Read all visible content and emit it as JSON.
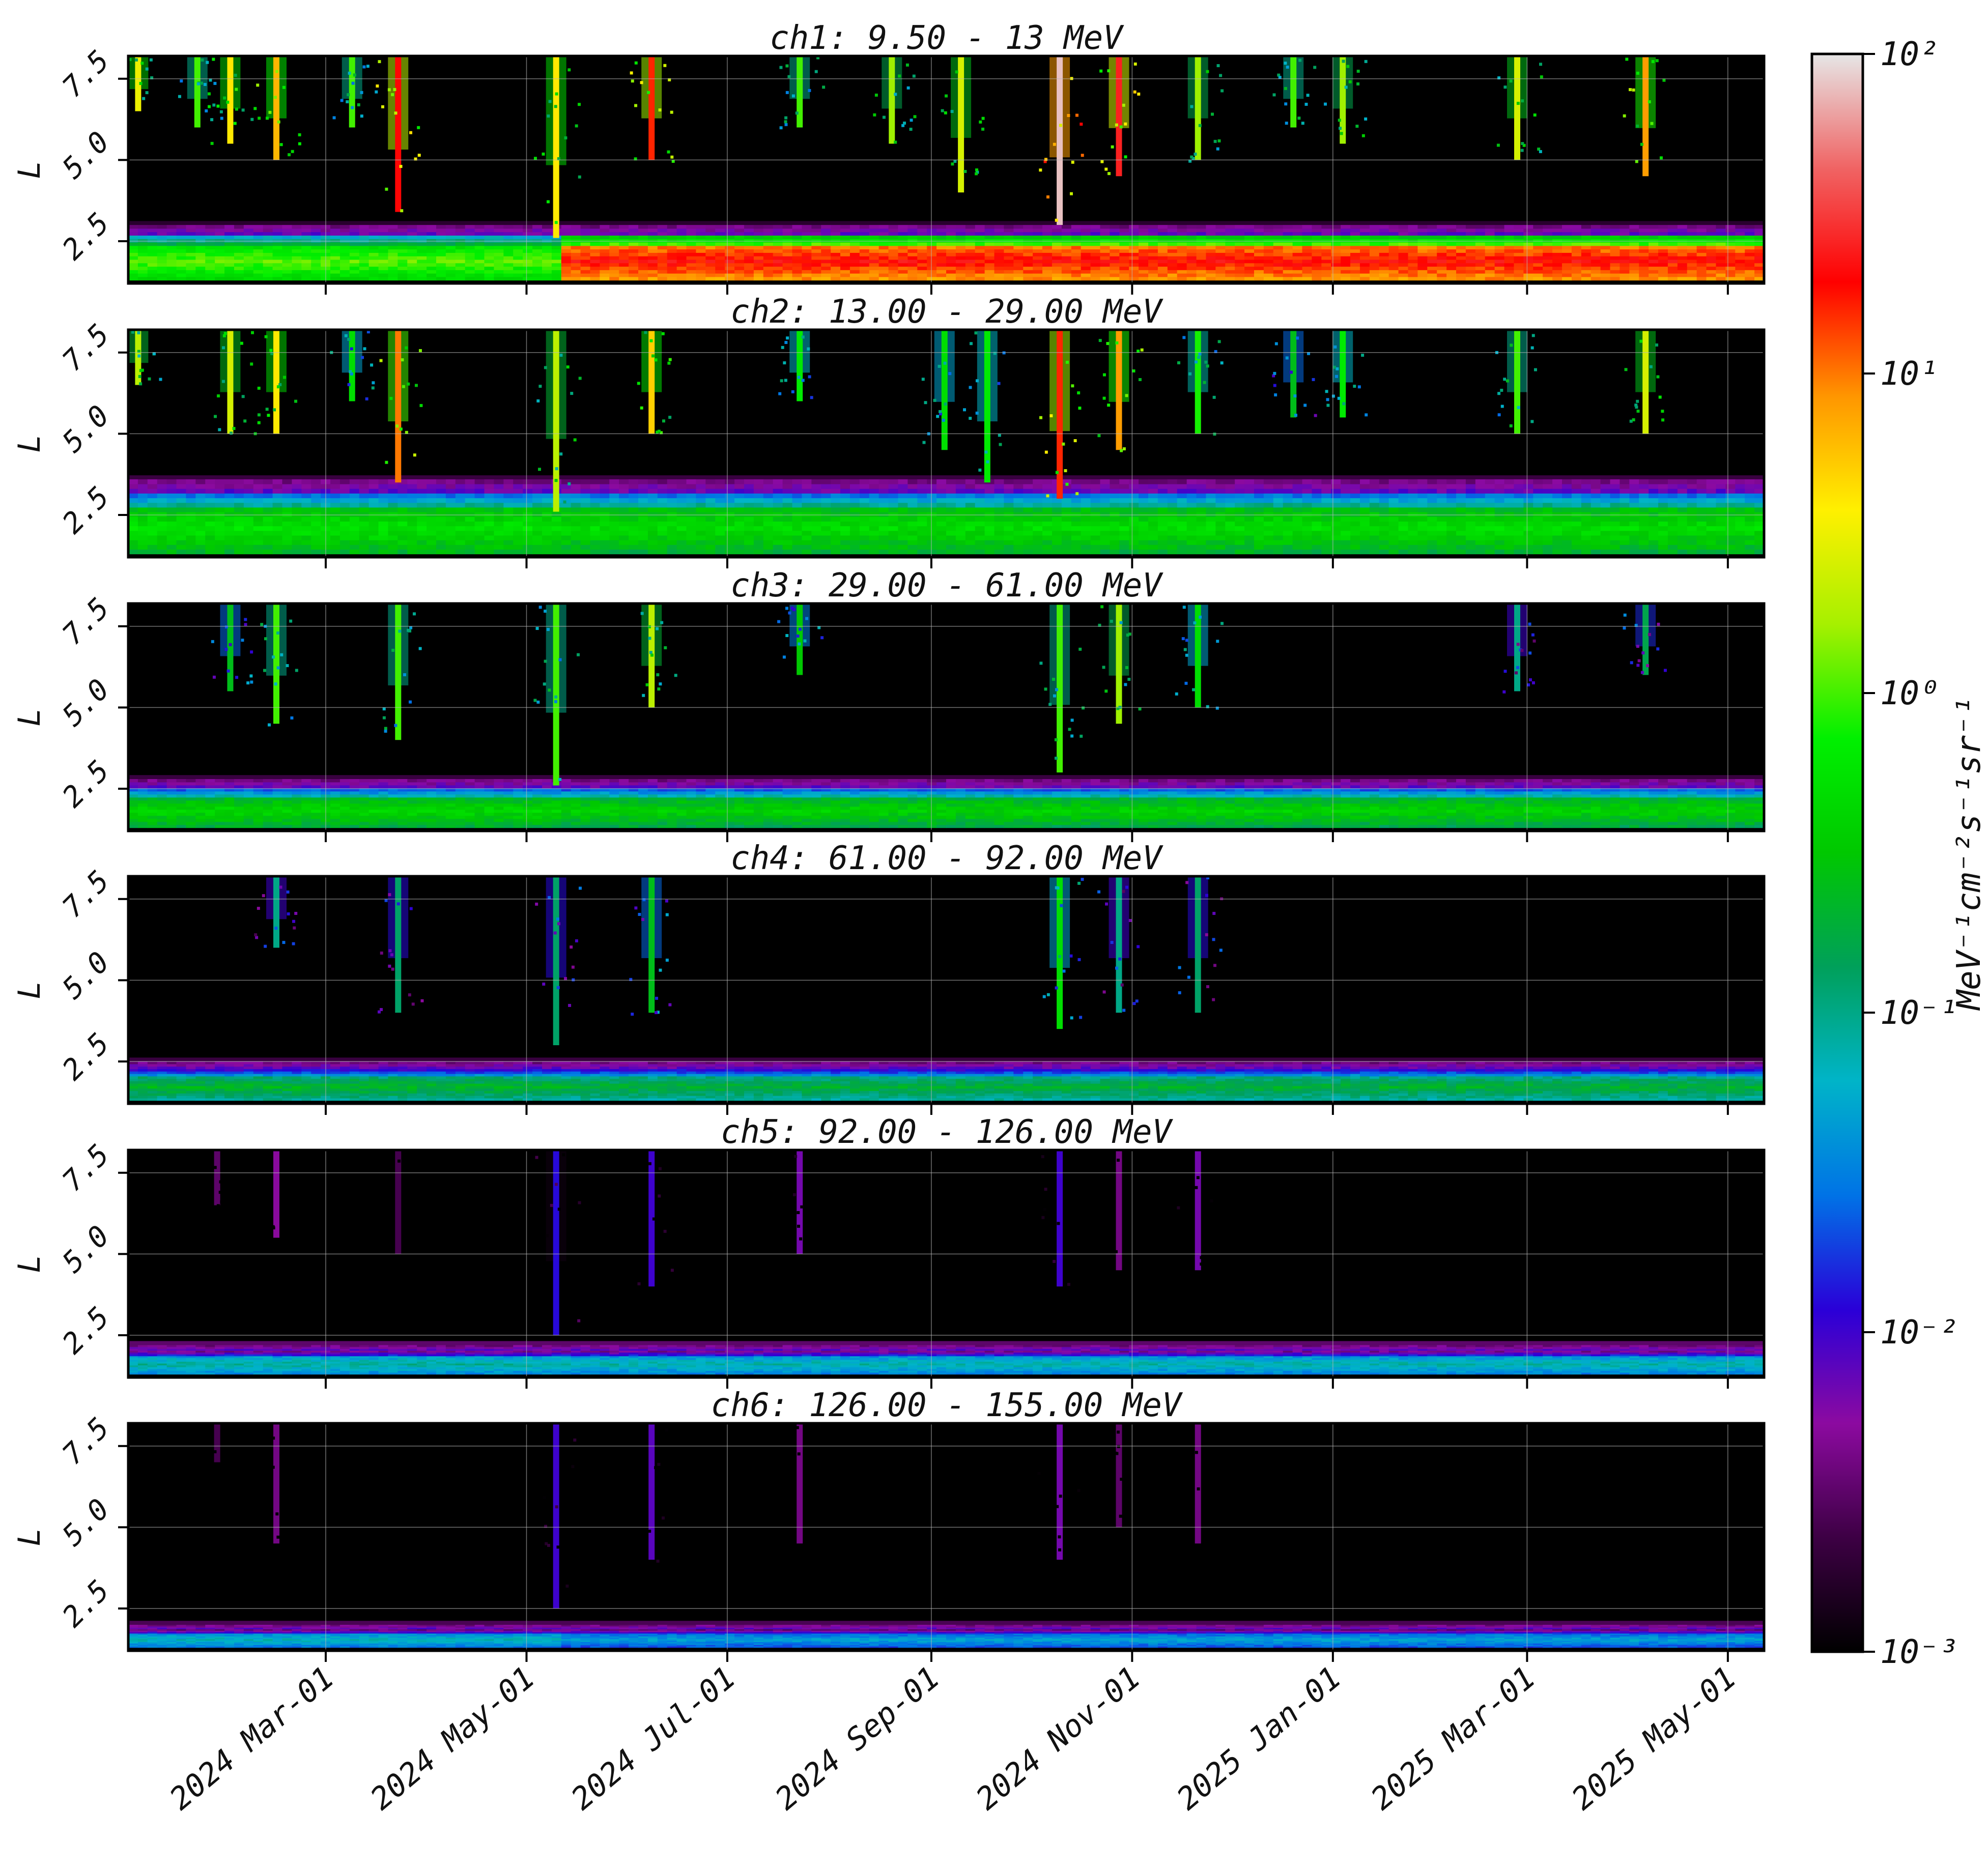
{
  "chart_data": {
    "type": "heatmap",
    "x_axis": {
      "tick_labels": [
        "2024 Mar-01",
        "2024 May-01",
        "2024 Jul-01",
        "2024 Sep-01",
        "2024 Nov-01",
        "2025 Jan-01",
        "2025 Mar-01",
        "2025 May-01"
      ],
      "tick_dates": [
        "2024-03-01",
        "2024-05-01",
        "2024-07-01",
        "2024-09-01",
        "2024-11-01",
        "2025-01-01",
        "2025-03-01",
        "2025-05-01"
      ],
      "range": [
        "2024-01-01",
        "2025-05-12"
      ],
      "grid": true
    },
    "y_axis": {
      "label": "L",
      "tick_labels": [
        "2.5",
        "5.0",
        "7.5"
      ],
      "ticks": [
        2.5,
        5.0,
        7.5
      ],
      "range": [
        1.2,
        8.2
      ],
      "grid": true
    },
    "colorbar": {
      "label": "MeV⁻¹cm⁻²s⁻¹sr⁻¹",
      "scale": "log",
      "range": [
        0.001,
        100
      ],
      "tick_labels": [
        "10⁻³",
        "10⁻²",
        "10⁻¹",
        "10⁰",
        "10¹",
        "10²"
      ],
      "tick_values": [
        0.001,
        0.01,
        0.1,
        1,
        10,
        100
      ],
      "colormap": [
        "#000000",
        "#3d0044",
        "#8c0aa0",
        "#2a00d8",
        "#0073e6",
        "#00b4c8",
        "#00a05a",
        "#00c800",
        "#00f000",
        "#a6f000",
        "#fff000",
        "#ff9600",
        "#ff0000",
        "#f06464",
        "#e6e6e6"
      ]
    },
    "panels": [
      {
        "title": "ch1: 9.50 - 13 MeV",
        "belt": {
          "L_min": 1.3,
          "L_max": 3.0,
          "log_flux": -0.2,
          "log_flux_after_may": 0.55,
          "core_after_may": 1.3
        },
        "events": [
          {
            "date": "2024-01-04",
            "L_min": 6.5,
            "log_flux": 0.5
          },
          {
            "date": "2024-01-22",
            "L_min": 6.0,
            "log_flux": 0.0
          },
          {
            "date": "2024-02-01",
            "L_min": 5.5,
            "log_flux": 0.6
          },
          {
            "date": "2024-02-15",
            "L_min": 5.0,
            "log_flux": 0.8
          },
          {
            "date": "2024-03-09",
            "L_min": 6.0,
            "log_flux": 0.0
          },
          {
            "date": "2024-03-23",
            "L_min": 3.4,
            "log_flux": 1.3
          },
          {
            "date": "2024-05-10",
            "L_min": 2.6,
            "log_flux": 0.6
          },
          {
            "date": "2024-06-08",
            "L_min": 5.0,
            "log_flux": 1.2
          },
          {
            "date": "2024-07-23",
            "L_min": 6.0,
            "log_flux": 0.0
          },
          {
            "date": "2024-08-20",
            "L_min": 5.5,
            "log_flux": 0.2
          },
          {
            "date": "2024-09-10",
            "L_min": 4.0,
            "log_flux": 0.4
          },
          {
            "date": "2024-10-10",
            "L_min": 3.0,
            "log_flux": 1.9
          },
          {
            "date": "2024-10-28",
            "L_min": 4.5,
            "log_flux": 1.4
          },
          {
            "date": "2024-11-21",
            "L_min": 5.0,
            "log_flux": 0.2
          },
          {
            "date": "2024-12-20",
            "L_min": 6.0,
            "log_flux": 0.0
          },
          {
            "date": "2025-01-04",
            "L_min": 5.5,
            "log_flux": 0.2
          },
          {
            "date": "2025-02-26",
            "L_min": 5.0,
            "log_flux": 0.4
          },
          {
            "date": "2025-04-06",
            "L_min": 4.5,
            "log_flux": 0.9
          }
        ]
      },
      {
        "title": "ch2: 13.00 - 29.00 MeV",
        "belt": {
          "L_min": 1.3,
          "L_max": 3.6,
          "log_flux": -0.5,
          "log_flux_after_may": -0.5,
          "core_after_may": -0.3
        },
        "events": [
          {
            "date": "2024-01-04",
            "L_min": 6.5,
            "log_flux": 0.3
          },
          {
            "date": "2024-02-01",
            "L_min": 5.0,
            "log_flux": 0.4
          },
          {
            "date": "2024-02-15",
            "L_min": 5.0,
            "log_flux": 0.6
          },
          {
            "date": "2024-03-09",
            "L_min": 6.0,
            "log_flux": -0.3
          },
          {
            "date": "2024-03-23",
            "L_min": 3.5,
            "log_flux": 1.0
          },
          {
            "date": "2024-05-10",
            "L_min": 2.6,
            "log_flux": 0.3
          },
          {
            "date": "2024-06-08",
            "L_min": 5.0,
            "log_flux": 0.7
          },
          {
            "date": "2024-07-23",
            "L_min": 6.0,
            "log_flux": -0.2
          },
          {
            "date": "2024-09-05",
            "L_min": 4.5,
            "log_flux": -0.3
          },
          {
            "date": "2024-09-18",
            "L_min": 3.5,
            "log_flux": -0.2
          },
          {
            "date": "2024-10-10",
            "L_min": 3.0,
            "log_flux": 1.2
          },
          {
            "date": "2024-10-28",
            "L_min": 4.5,
            "log_flux": 0.9
          },
          {
            "date": "2024-11-21",
            "L_min": 5.0,
            "log_flux": -0.1
          },
          {
            "date": "2024-12-20",
            "L_min": 5.5,
            "log_flux": -0.6
          },
          {
            "date": "2025-01-04",
            "L_min": 5.5,
            "log_flux": -0.2
          },
          {
            "date": "2025-02-26",
            "L_min": 5.0,
            "log_flux": 0.0
          },
          {
            "date": "2025-04-06",
            "L_min": 5.0,
            "log_flux": 0.4
          }
        ]
      },
      {
        "title": "ch3: 29.00 - 61.00 MeV",
        "belt": {
          "L_min": 1.3,
          "L_max": 2.8,
          "log_flux": -0.6,
          "log_flux_after_may": -0.6,
          "core_after_may": -0.4
        },
        "events": [
          {
            "date": "2024-02-01",
            "L_min": 5.5,
            "log_flux": -0.6
          },
          {
            "date": "2024-02-15",
            "L_min": 4.5,
            "log_flux": 0.0
          },
          {
            "date": "2024-03-23",
            "L_min": 4.0,
            "log_flux": 0.0
          },
          {
            "date": "2024-05-10",
            "L_min": 2.6,
            "log_flux": 0.0
          },
          {
            "date": "2024-06-08",
            "L_min": 5.0,
            "log_flux": 0.3
          },
          {
            "date": "2024-07-23",
            "L_min": 6.0,
            "log_flux": -0.5
          },
          {
            "date": "2024-10-10",
            "L_min": 3.0,
            "log_flux": 0.0
          },
          {
            "date": "2024-10-28",
            "L_min": 4.5,
            "log_flux": 0.2
          },
          {
            "date": "2024-11-21",
            "L_min": 5.0,
            "log_flux": -0.3
          },
          {
            "date": "2025-02-26",
            "L_min": 5.5,
            "log_flux": -1.0
          },
          {
            "date": "2025-04-06",
            "L_min": 6.0,
            "log_flux": -0.8
          }
        ]
      },
      {
        "title": "ch4: 61.00 - 92.00 MeV",
        "belt": {
          "L_min": 1.3,
          "L_max": 2.5,
          "log_flux": -0.9,
          "log_flux_after_may": -0.9,
          "core_after_may": -0.7
        },
        "events": [
          {
            "date": "2024-02-15",
            "L_min": 6.0,
            "log_flux": -1.0
          },
          {
            "date": "2024-03-23",
            "L_min": 4.0,
            "log_flux": -0.9
          },
          {
            "date": "2024-05-10",
            "L_min": 3.0,
            "log_flux": -0.9
          },
          {
            "date": "2024-06-08",
            "L_min": 4.0,
            "log_flux": -0.6
          },
          {
            "date": "2024-10-10",
            "L_min": 3.5,
            "log_flux": -0.3
          },
          {
            "date": "2024-10-28",
            "L_min": 4.0,
            "log_flux": -1.0
          },
          {
            "date": "2024-11-21",
            "L_min": 4.0,
            "log_flux": -0.9
          }
        ]
      },
      {
        "title": "ch5: 92.00 - 126.00 MeV",
        "belt": {
          "L_min": 1.3,
          "L_max": 2.2,
          "log_flux": -1.3,
          "log_flux_after_may": -1.3,
          "core_after_may": -1.1
        },
        "events": [
          {
            "date": "2024-01-28",
            "L_min": 6.5,
            "log_flux": -2.5
          },
          {
            "date": "2024-02-15",
            "L_min": 5.5,
            "log_flux": -2.3
          },
          {
            "date": "2024-03-23",
            "L_min": 5.0,
            "log_flux": -2.6
          },
          {
            "date": "2024-05-10",
            "L_min": 2.5,
            "log_flux": -1.9
          },
          {
            "date": "2024-06-08",
            "L_min": 4.0,
            "log_flux": -2.0
          },
          {
            "date": "2024-07-23",
            "L_min": 5.0,
            "log_flux": -2.2
          },
          {
            "date": "2024-10-10",
            "L_min": 4.0,
            "log_flux": -2.0
          },
          {
            "date": "2024-10-28",
            "L_min": 4.5,
            "log_flux": -2.4
          },
          {
            "date": "2024-11-21",
            "L_min": 4.5,
            "log_flux": -2.2
          }
        ]
      },
      {
        "title": "ch6: 126.00 - 155.00 MeV",
        "belt": {
          "L_min": 1.3,
          "L_max": 2.0,
          "log_flux": -1.4,
          "log_flux_after_may": -1.4,
          "core_after_may": -1.3
        },
        "events": [
          {
            "date": "2024-01-28",
            "L_min": 7.0,
            "log_flux": -2.6
          },
          {
            "date": "2024-02-15",
            "L_min": 4.5,
            "log_flux": -2.4
          },
          {
            "date": "2024-05-10",
            "L_min": 2.5,
            "log_flux": -2.0
          },
          {
            "date": "2024-06-08",
            "L_min": 4.0,
            "log_flux": -2.1
          },
          {
            "date": "2024-07-23",
            "L_min": 4.5,
            "log_flux": -2.4
          },
          {
            "date": "2024-10-10",
            "L_min": 4.0,
            "log_flux": -2.2
          },
          {
            "date": "2024-10-28",
            "L_min": 5.0,
            "log_flux": -2.5
          },
          {
            "date": "2024-11-21",
            "L_min": 4.5,
            "log_flux": -2.4
          }
        ]
      }
    ]
  }
}
